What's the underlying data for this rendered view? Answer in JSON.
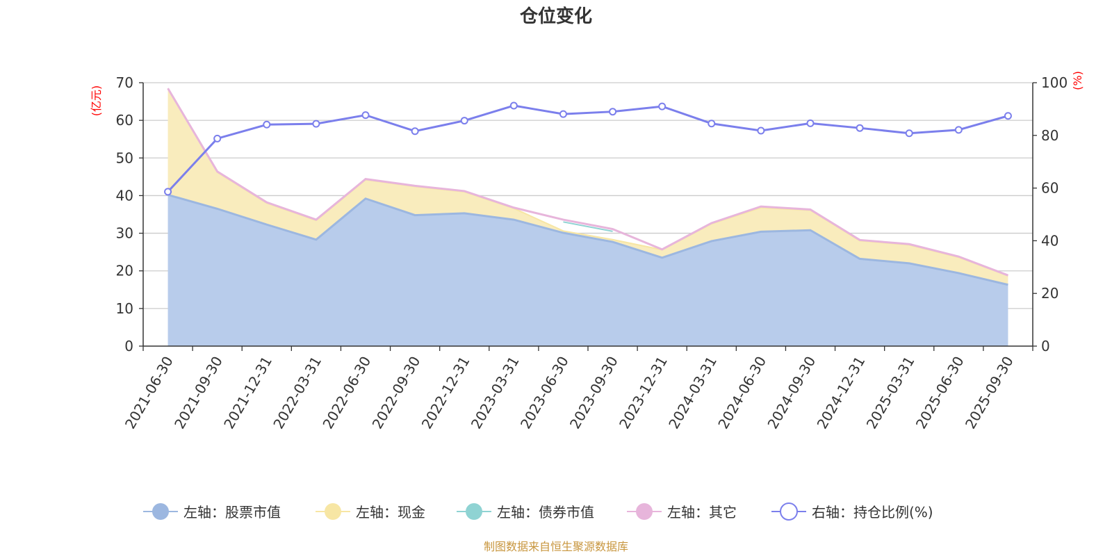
{
  "chart_data": {
    "type": "area",
    "title": "仓位变化",
    "left_axis_unit": "(亿元)",
    "right_axis_unit": "(%)",
    "categories": [
      "2021-06-30",
      "2021-09-30",
      "2021-12-31",
      "2022-03-31",
      "2022-06-30",
      "2022-09-30",
      "2022-12-31",
      "2023-03-31",
      "2023-06-30",
      "2023-09-30",
      "2023-12-31",
      "2024-03-31",
      "2024-06-30",
      "2024-09-30",
      "2024-12-31",
      "2025-03-31",
      "2025-06-30",
      "2025-09-30"
    ],
    "ylim_left": [
      0,
      70
    ],
    "yticks_left": [
      "0",
      "10",
      "20",
      "30",
      "40",
      "50",
      "60",
      "70"
    ],
    "ylim_right": [
      0,
      100
    ],
    "yticks_right": [
      "0",
      "20",
      "40",
      "60",
      "80",
      "100"
    ],
    "grid": true,
    "legend_position": "bottom",
    "series": [
      {
        "name": "左轴：股票市值",
        "axis": "left",
        "kind": "area",
        "color": "#9cb7e0",
        "fill": "#b8cceb",
        "values": [
          40.2,
          36.5,
          32.3,
          28.3,
          39.2,
          34.8,
          35.3,
          33.6,
          30.1,
          27.7,
          23.5,
          27.9,
          30.4,
          30.8,
          23.2,
          22.0,
          19.4,
          16.3
        ]
      },
      {
        "name": "左轴：现金",
        "axis": "left",
        "kind": "area",
        "color": "#f7e6a4",
        "fill": "#f9ecbd",
        "values": [
          28.2,
          9.7,
          5.7,
          5.1,
          5.0,
          7.6,
          5.7,
          3.0,
          0.5,
          0.6,
          2.1,
          4.6,
          6.4,
          5.3,
          4.8,
          4.9,
          4.2,
          2.4
        ]
      },
      {
        "name": "左轴：债券市值",
        "axis": "left",
        "kind": "line",
        "color": "#8fd3d3",
        "values": [
          null,
          null,
          null,
          null,
          null,
          null,
          null,
          null,
          2.9,
          2.8,
          null,
          null,
          null,
          null,
          null,
          null,
          null,
          null
        ]
      },
      {
        "name": "左轴：其它",
        "axis": "left",
        "kind": "line",
        "color": "#e7b5db",
        "values": [
          68.5,
          46.4,
          38.2,
          33.6,
          44.4,
          42.6,
          41.2,
          36.8,
          33.6,
          31.1,
          25.7,
          32.7,
          37.1,
          36.3,
          28.2,
          27.1,
          23.8,
          18.8
        ]
      },
      {
        "name": "右轴：持仓比例(%)",
        "axis": "right",
        "kind": "line",
        "color": "#7b7fec",
        "values": [
          58.6,
          78.8,
          84.1,
          84.4,
          87.7,
          81.6,
          85.6,
          91.3,
          88.1,
          89.0,
          91.0,
          84.5,
          81.8,
          84.6,
          82.8,
          80.8,
          82.1,
          87.4
        ]
      }
    ]
  },
  "footer": {
    "source": "制图数据来自恒生聚源数据库"
  }
}
